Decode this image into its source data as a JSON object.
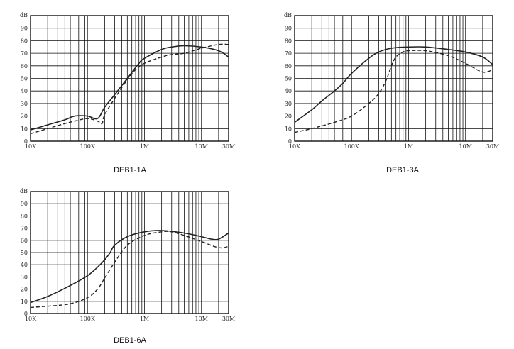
{
  "chart_data": [
    {
      "type": "line",
      "title": "DEB1-1A",
      "y_unit": "dB",
      "xscale": "log",
      "xlim": [
        10000,
        30000000
      ],
      "ylim": [
        0,
        100
      ],
      "x_tick_labels": [
        "10K",
        "100K",
        "1M",
        "10M",
        "30M"
      ],
      "y_tick_labels": [
        "0",
        "10",
        "20",
        "30",
        "40",
        "50",
        "60",
        "70",
        "80",
        "90"
      ],
      "grid": true,
      "series": [
        {
          "style": "solid",
          "x": [
            10000,
            20000,
            40000,
            60000,
            100000,
            150000,
            200000,
            300000,
            500000,
            800000,
            1000000,
            2000000,
            3000000,
            5000000,
            10000000,
            20000000,
            30000000
          ],
          "y": [
            9,
            13,
            17,
            20,
            20,
            18,
            27,
            37,
            50,
            62,
            66,
            73,
            75,
            76,
            75,
            72,
            67
          ]
        },
        {
          "style": "dashed",
          "x": [
            10000,
            20000,
            40000,
            60000,
            100000,
            150000,
            180000,
            200000,
            300000,
            500000,
            700000,
            1000000,
            2000000,
            3000000,
            5000000,
            10000000,
            20000000,
            30000000
          ],
          "y": [
            6,
            10,
            14,
            16,
            18,
            16,
            14,
            21,
            34,
            49,
            57,
            62,
            67,
            69,
            70,
            74,
            77,
            77
          ]
        }
      ]
    },
    {
      "type": "line",
      "title": "DEB1-3A",
      "y_unit": "dB",
      "xscale": "log",
      "xlim": [
        10000,
        30000000
      ],
      "ylim": [
        0,
        100
      ],
      "x_tick_labels": [
        "10K",
        "100K",
        "1M",
        "10M",
        "30M"
      ],
      "y_tick_labels": [
        "0",
        "10",
        "20",
        "30",
        "40",
        "50",
        "60",
        "70",
        "80",
        "90"
      ],
      "grid": true,
      "series": [
        {
          "style": "solid",
          "x": [
            10000,
            20000,
            30000,
            50000,
            70000,
            100000,
            200000,
            300000,
            500000,
            1000000,
            2000000,
            5000000,
            10000000,
            20000000,
            30000000
          ],
          "y": [
            15,
            25,
            32,
            40,
            46,
            54,
            66,
            71,
            74,
            75,
            75,
            73,
            71,
            67,
            61
          ]
        },
        {
          "style": "dashed",
          "x": [
            10000,
            20000,
            50000,
            100000,
            200000,
            300000,
            400000,
            500000,
            600000,
            800000,
            1000000,
            2000000,
            5000000,
            10000000,
            20000000,
            30000000
          ],
          "y": [
            7,
            10,
            15,
            20,
            30,
            38,
            48,
            60,
            67,
            71,
            72,
            72,
            68,
            62,
            55,
            57
          ]
        }
      ]
    },
    {
      "type": "line",
      "title": "DEB1-6A",
      "y_unit": "dB",
      "xscale": "log",
      "xlim": [
        10000,
        30000000
      ],
      "ylim": [
        0,
        100
      ],
      "x_tick_labels": [
        "10K",
        "100K",
        "1M",
        "10M",
        "30M"
      ],
      "y_tick_labels": [
        "0",
        "10",
        "20",
        "30",
        "40",
        "50",
        "60",
        "70",
        "80",
        "90"
      ],
      "grid": true,
      "series": [
        {
          "style": "solid",
          "x": [
            10000,
            20000,
            50000,
            100000,
            150000,
            200000,
            250000,
            300000,
            500000,
            1000000,
            2000000,
            5000000,
            10000000,
            15000000,
            20000000,
            30000000
          ],
          "y": [
            9,
            14,
            23,
            31,
            38,
            44,
            50,
            56,
            63,
            67,
            68,
            66,
            63,
            61,
            61,
            66
          ]
        },
        {
          "style": "dashed",
          "x": [
            10000,
            20000,
            50000,
            100000,
            150000,
            200000,
            300000,
            500000,
            1000000,
            2000000,
            3000000,
            5000000,
            10000000,
            20000000,
            30000000
          ],
          "y": [
            5,
            6,
            8,
            13,
            20,
            29,
            42,
            56,
            64,
            67,
            67,
            64,
            59,
            54,
            55
          ]
        }
      ]
    }
  ]
}
